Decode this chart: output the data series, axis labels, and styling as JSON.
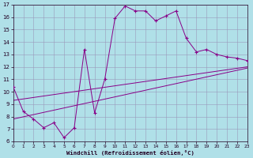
{
  "xlabel": "Windchill (Refroidissement éolien,°C)",
  "bg_color": "#b0e0e8",
  "line_color": "#880088",
  "grid_color": "#9999bb",
  "xmin": 0,
  "xmax": 23,
  "ymin": 6,
  "ymax": 17,
  "yticks": [
    6,
    7,
    8,
    9,
    10,
    11,
    12,
    13,
    14,
    15,
    16,
    17
  ],
  "xticks": [
    0,
    1,
    2,
    3,
    4,
    5,
    6,
    7,
    8,
    9,
    10,
    11,
    12,
    13,
    14,
    15,
    16,
    17,
    18,
    19,
    20,
    21,
    22,
    23
  ],
  "jagged_x": [
    0,
    1,
    2,
    3,
    4,
    5,
    6,
    7,
    8,
    9,
    10,
    11,
    12,
    13,
    14,
    15,
    16,
    17,
    18,
    19,
    20,
    21,
    22,
    23
  ],
  "jagged_y": [
    10.4,
    8.4,
    7.8,
    7.1,
    7.5,
    6.3,
    7.1,
    13.4,
    8.3,
    11.0,
    15.9,
    16.9,
    16.5,
    16.5,
    15.7,
    16.1,
    16.5,
    14.3,
    13.2,
    13.4,
    13.0,
    12.8,
    12.7,
    12.5
  ],
  "line2_x": [
    0,
    23
  ],
  "line2_y": [
    7.8,
    11.9
  ],
  "line3_x": [
    0,
    23
  ],
  "line3_y": [
    9.3,
    12.0
  ]
}
